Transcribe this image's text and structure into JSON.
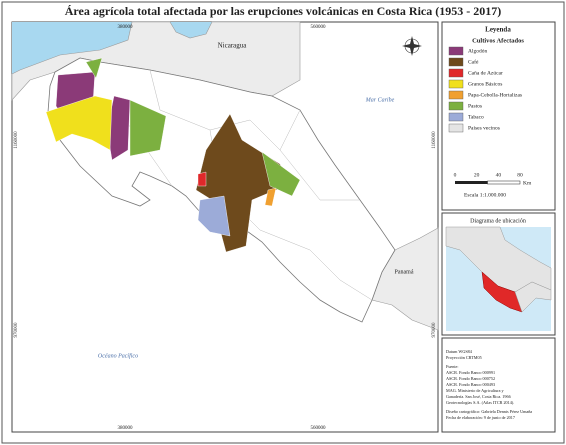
{
  "header": {
    "title": "Área agrícola total afectada por las erupciones volcánicas en Costa Rica (1953 - 2017)"
  },
  "map": {
    "x_coords": [
      "380000",
      "560000"
    ],
    "y_coords": [
      "1160000",
      "970000"
    ],
    "places": {
      "nicaragua": "Nicaragua",
      "caribbean": "Mar Caribe",
      "panama": "Panamá",
      "pacific": "Océano Pacífico"
    }
  },
  "legend": {
    "title": "Leyenda",
    "subtitle": "Cultivos Afectados",
    "items": [
      {
        "label": "Algodón",
        "color": "#8b3a78"
      },
      {
        "label": "Café",
        "color": "#6e4a1c"
      },
      {
        "label": "Caña de Azúcar",
        "color": "#e0282a"
      },
      {
        "label": "Granos Básicos",
        "color": "#f0e01c"
      },
      {
        "label": "Papa-Cebolla-Hortalizas",
        "color": "#f0a030"
      },
      {
        "label": "Pastos",
        "color": "#7cb040"
      },
      {
        "label": "Tabaco",
        "color": "#9cabd8"
      },
      {
        "label": "Países vecinos",
        "color": "#e4e4e4"
      }
    ]
  },
  "scale": {
    "ticks": [
      "0",
      "20",
      "40",
      "80"
    ],
    "unit": "Km",
    "text": "Escala 1:1.000.000"
  },
  "inset": {
    "title": "Diagrama de ubicación"
  },
  "notes": [
    "Datum WGS84",
    "Proyección CRTM05",
    "Fuente:",
    "ASCR. Fondo Banco 000991",
    "ASCR. Fondo Banco 000752",
    "ASCR. Fondo Banco 000493",
    "MAG. Ministerio de Agricultura y",
    "Ganadería. San José, Costa Rica. 1966",
    "Geotecnologías S.A. (Atlas ITCR 2014).",
    "Diseño cartográfico: Gabriela Dennis Pérez Umaña",
    "Fecha de elaboración: 9 de junio de 2017"
  ]
}
